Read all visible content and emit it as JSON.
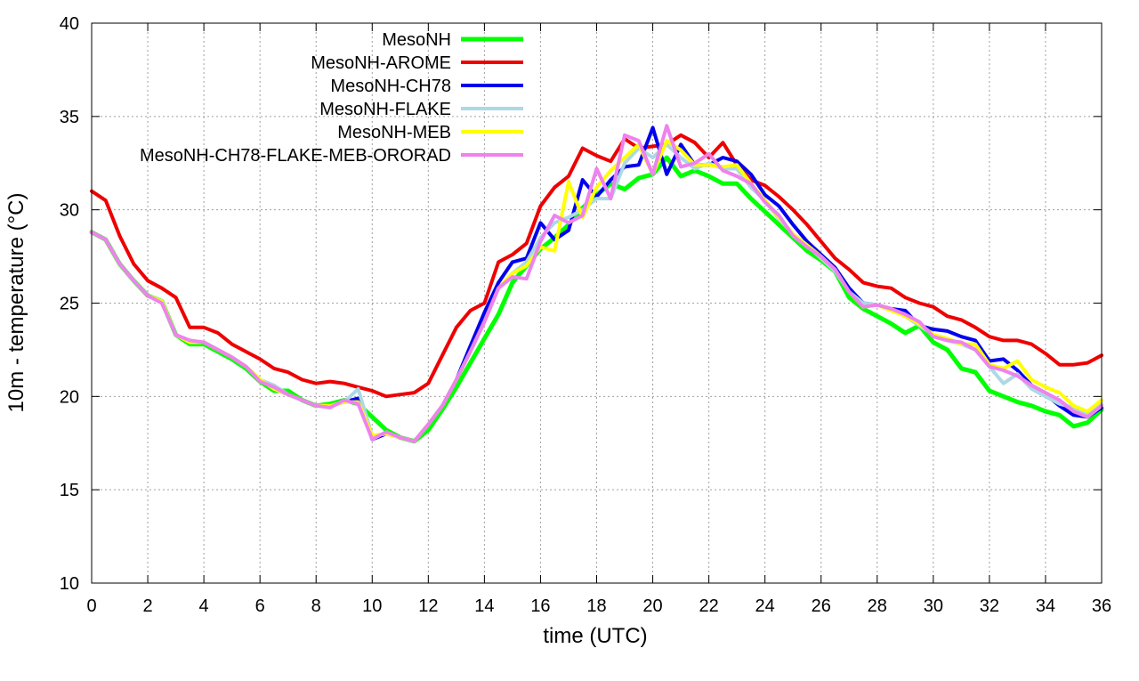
{
  "chart_data": {
    "type": "line",
    "xlabel": "time (UTC)",
    "ylabel": "10m - temperature (°C)",
    "xlim": [
      0,
      36
    ],
    "ylim": [
      10,
      40
    ],
    "xticks": [
      0,
      2,
      4,
      6,
      8,
      10,
      12,
      14,
      16,
      18,
      20,
      22,
      24,
      26,
      28,
      30,
      32,
      34,
      36
    ],
    "yticks": [
      10,
      15,
      20,
      25,
      30,
      35,
      40
    ],
    "grid": true,
    "legend_position": "top-left",
    "x": [
      0,
      0.5,
      1,
      1.5,
      2,
      2.5,
      3,
      3.5,
      4,
      4.5,
      5,
      5.5,
      6,
      6.5,
      7,
      7.5,
      8,
      8.5,
      9,
      9.5,
      10,
      10.5,
      11,
      11.5,
      12,
      12.5,
      13,
      13.5,
      14,
      14.5,
      15,
      15.5,
      16,
      16.5,
      17,
      17.5,
      18,
      18.5,
      19,
      19.5,
      20,
      20.5,
      21,
      21.5,
      22,
      22.5,
      23,
      23.5,
      24,
      24.5,
      25,
      25.5,
      26,
      26.5,
      27,
      27.5,
      28,
      28.5,
      29,
      29.5,
      30,
      30.5,
      31,
      31.5,
      32,
      32.5,
      33,
      33.5,
      34,
      34.5,
      35,
      35.5,
      36
    ],
    "series": [
      {
        "name": "MesoNH",
        "color": "#00ff00",
        "width": 5,
        "values": [
          28.8,
          28.4,
          27.1,
          26.2,
          25.4,
          25.1,
          23.3,
          22.8,
          22.8,
          22.4,
          22.0,
          21.5,
          20.8,
          20.3,
          20.3,
          19.8,
          19.5,
          19.6,
          19.8,
          19.6,
          18.9,
          18.2,
          17.8,
          17.6,
          18.2,
          19.3,
          20.5,
          21.8,
          23.1,
          24.4,
          26.1,
          27.0,
          27.9,
          28.5,
          29.2,
          30.1,
          30.8,
          31.4,
          31.1,
          31.7,
          31.9,
          32.8,
          31.8,
          32.1,
          31.8,
          31.4,
          31.4,
          30.6,
          29.9,
          29.2,
          28.5,
          27.8,
          27.3,
          26.7,
          25.3,
          24.7,
          24.3,
          23.9,
          23.4,
          23.8,
          22.9,
          22.5,
          21.5,
          21.3,
          20.3,
          20.0,
          19.7,
          19.5,
          19.2,
          19.0,
          18.4,
          18.6,
          19.3
        ]
      },
      {
        "name": "MesoNH-AROME",
        "color": "#ee0000",
        "width": 4,
        "values": [
          31.0,
          30.5,
          28.6,
          27.1,
          26.2,
          25.8,
          25.3,
          23.7,
          23.7,
          23.4,
          22.8,
          22.4,
          22.0,
          21.5,
          21.3,
          20.9,
          20.7,
          20.8,
          20.7,
          20.5,
          20.3,
          20.0,
          20.1,
          20.2,
          20.7,
          22.2,
          23.7,
          24.6,
          25.0,
          27.2,
          27.6,
          28.2,
          30.2,
          31.2,
          31.8,
          33.3,
          32.9,
          32.6,
          33.8,
          33.3,
          33.4,
          33.5,
          34.0,
          33.6,
          32.8,
          33.6,
          32.4,
          31.6,
          31.3,
          30.7,
          30.0,
          29.2,
          28.3,
          27.4,
          26.8,
          26.1,
          25.9,
          25.8,
          25.3,
          25.0,
          24.8,
          24.3,
          24.1,
          23.7,
          23.2,
          23.0,
          23.0,
          22.8,
          22.3,
          21.7,
          21.7,
          21.8,
          22.2
        ]
      },
      {
        "name": "MesoNH-CH78",
        "color": "#0000ee",
        "width": 4,
        "values": [
          28.8,
          28.4,
          27.1,
          26.2,
          25.4,
          25.1,
          23.3,
          22.9,
          22.9,
          22.5,
          22.1,
          21.6,
          20.9,
          20.4,
          20.1,
          19.8,
          19.5,
          19.5,
          19.7,
          19.9,
          17.7,
          18.0,
          17.8,
          17.6,
          18.5,
          19.5,
          20.9,
          22.7,
          24.5,
          26.1,
          27.2,
          27.4,
          29.3,
          28.4,
          28.9,
          31.6,
          30.7,
          31.6,
          32.3,
          32.4,
          34.4,
          31.9,
          33.5,
          32.4,
          32.4,
          32.8,
          32.6,
          31.9,
          30.8,
          30.2,
          29.2,
          28.3,
          27.6,
          26.9,
          25.8,
          25.0,
          24.9,
          24.7,
          24.6,
          23.8,
          23.6,
          23.5,
          23.2,
          23.0,
          21.9,
          22.0,
          21.4,
          20.6,
          20.1,
          19.5,
          19.0,
          18.9,
          19.4
        ]
      },
      {
        "name": "MesoNH-FLAKE",
        "color": "#add8e6",
        "width": 4,
        "values": [
          28.8,
          28.4,
          27.1,
          26.2,
          25.4,
          25.1,
          23.3,
          22.9,
          22.9,
          22.5,
          22.1,
          21.6,
          20.9,
          20.6,
          20.1,
          19.8,
          19.5,
          19.5,
          19.7,
          20.4,
          17.9,
          18.0,
          17.8,
          17.6,
          18.5,
          19.5,
          20.9,
          22.4,
          24.0,
          25.8,
          26.6,
          27.2,
          28.5,
          29.3,
          29.6,
          30.0,
          30.6,
          30.6,
          32.5,
          33.3,
          32.8,
          33.5,
          32.8,
          32.2,
          32.5,
          32.2,
          32.2,
          31.2,
          30.5,
          29.5,
          28.7,
          28.1,
          27.4,
          26.7,
          25.6,
          25.0,
          24.9,
          24.7,
          24.3,
          23.8,
          23.3,
          23.0,
          22.8,
          22.5,
          21.6,
          20.7,
          21.2,
          20.4,
          20.0,
          19.6,
          19.4,
          19.1,
          19.6
        ]
      },
      {
        "name": "MesoNH-MEB",
        "color": "#ffff00",
        "width": 4,
        "values": [
          28.8,
          28.4,
          27.1,
          26.2,
          25.4,
          25.1,
          23.3,
          22.9,
          22.9,
          22.5,
          22.1,
          21.6,
          20.9,
          20.4,
          20.1,
          19.8,
          19.5,
          19.5,
          19.7,
          19.7,
          17.9,
          18.0,
          17.8,
          17.6,
          18.5,
          19.5,
          20.9,
          22.4,
          24.0,
          25.8,
          26.6,
          27.0,
          28.0,
          27.8,
          31.5,
          29.6,
          31.2,
          32.1,
          32.8,
          33.5,
          31.9,
          33.7,
          33.2,
          32.4,
          32.4,
          32.3,
          32.4,
          31.4,
          30.5,
          29.6,
          28.7,
          28.1,
          27.5,
          26.8,
          25.6,
          24.8,
          24.9,
          24.6,
          24.3,
          23.9,
          23.3,
          23.1,
          22.8,
          22.8,
          21.7,
          21.5,
          21.9,
          20.9,
          20.5,
          20.2,
          19.5,
          19.2,
          19.8
        ]
      },
      {
        "name": "MesoNH-CH78-FLAKE-MEB-ORORAD",
        "color": "#ee82ee",
        "width": 4,
        "values": [
          28.8,
          28.4,
          27.1,
          26.2,
          25.4,
          25.0,
          23.3,
          23.0,
          22.9,
          22.5,
          22.1,
          21.6,
          20.8,
          20.5,
          20.1,
          19.8,
          19.5,
          19.4,
          19.8,
          19.6,
          17.7,
          18.1,
          17.8,
          17.6,
          18.5,
          19.5,
          20.9,
          22.4,
          24.0,
          25.8,
          26.4,
          26.3,
          28.3,
          29.7,
          29.3,
          29.7,
          32.2,
          30.6,
          34.0,
          33.7,
          31.9,
          34.5,
          32.3,
          32.5,
          33.0,
          32.1,
          31.8,
          31.4,
          30.4,
          29.7,
          28.6,
          28.0,
          27.5,
          26.8,
          25.6,
          24.8,
          24.9,
          24.7,
          24.4,
          24.0,
          23.2,
          23.0,
          22.9,
          22.5,
          21.6,
          21.4,
          21.1,
          20.6,
          20.2,
          19.8,
          19.2,
          18.9,
          19.5
        ]
      }
    ]
  }
}
